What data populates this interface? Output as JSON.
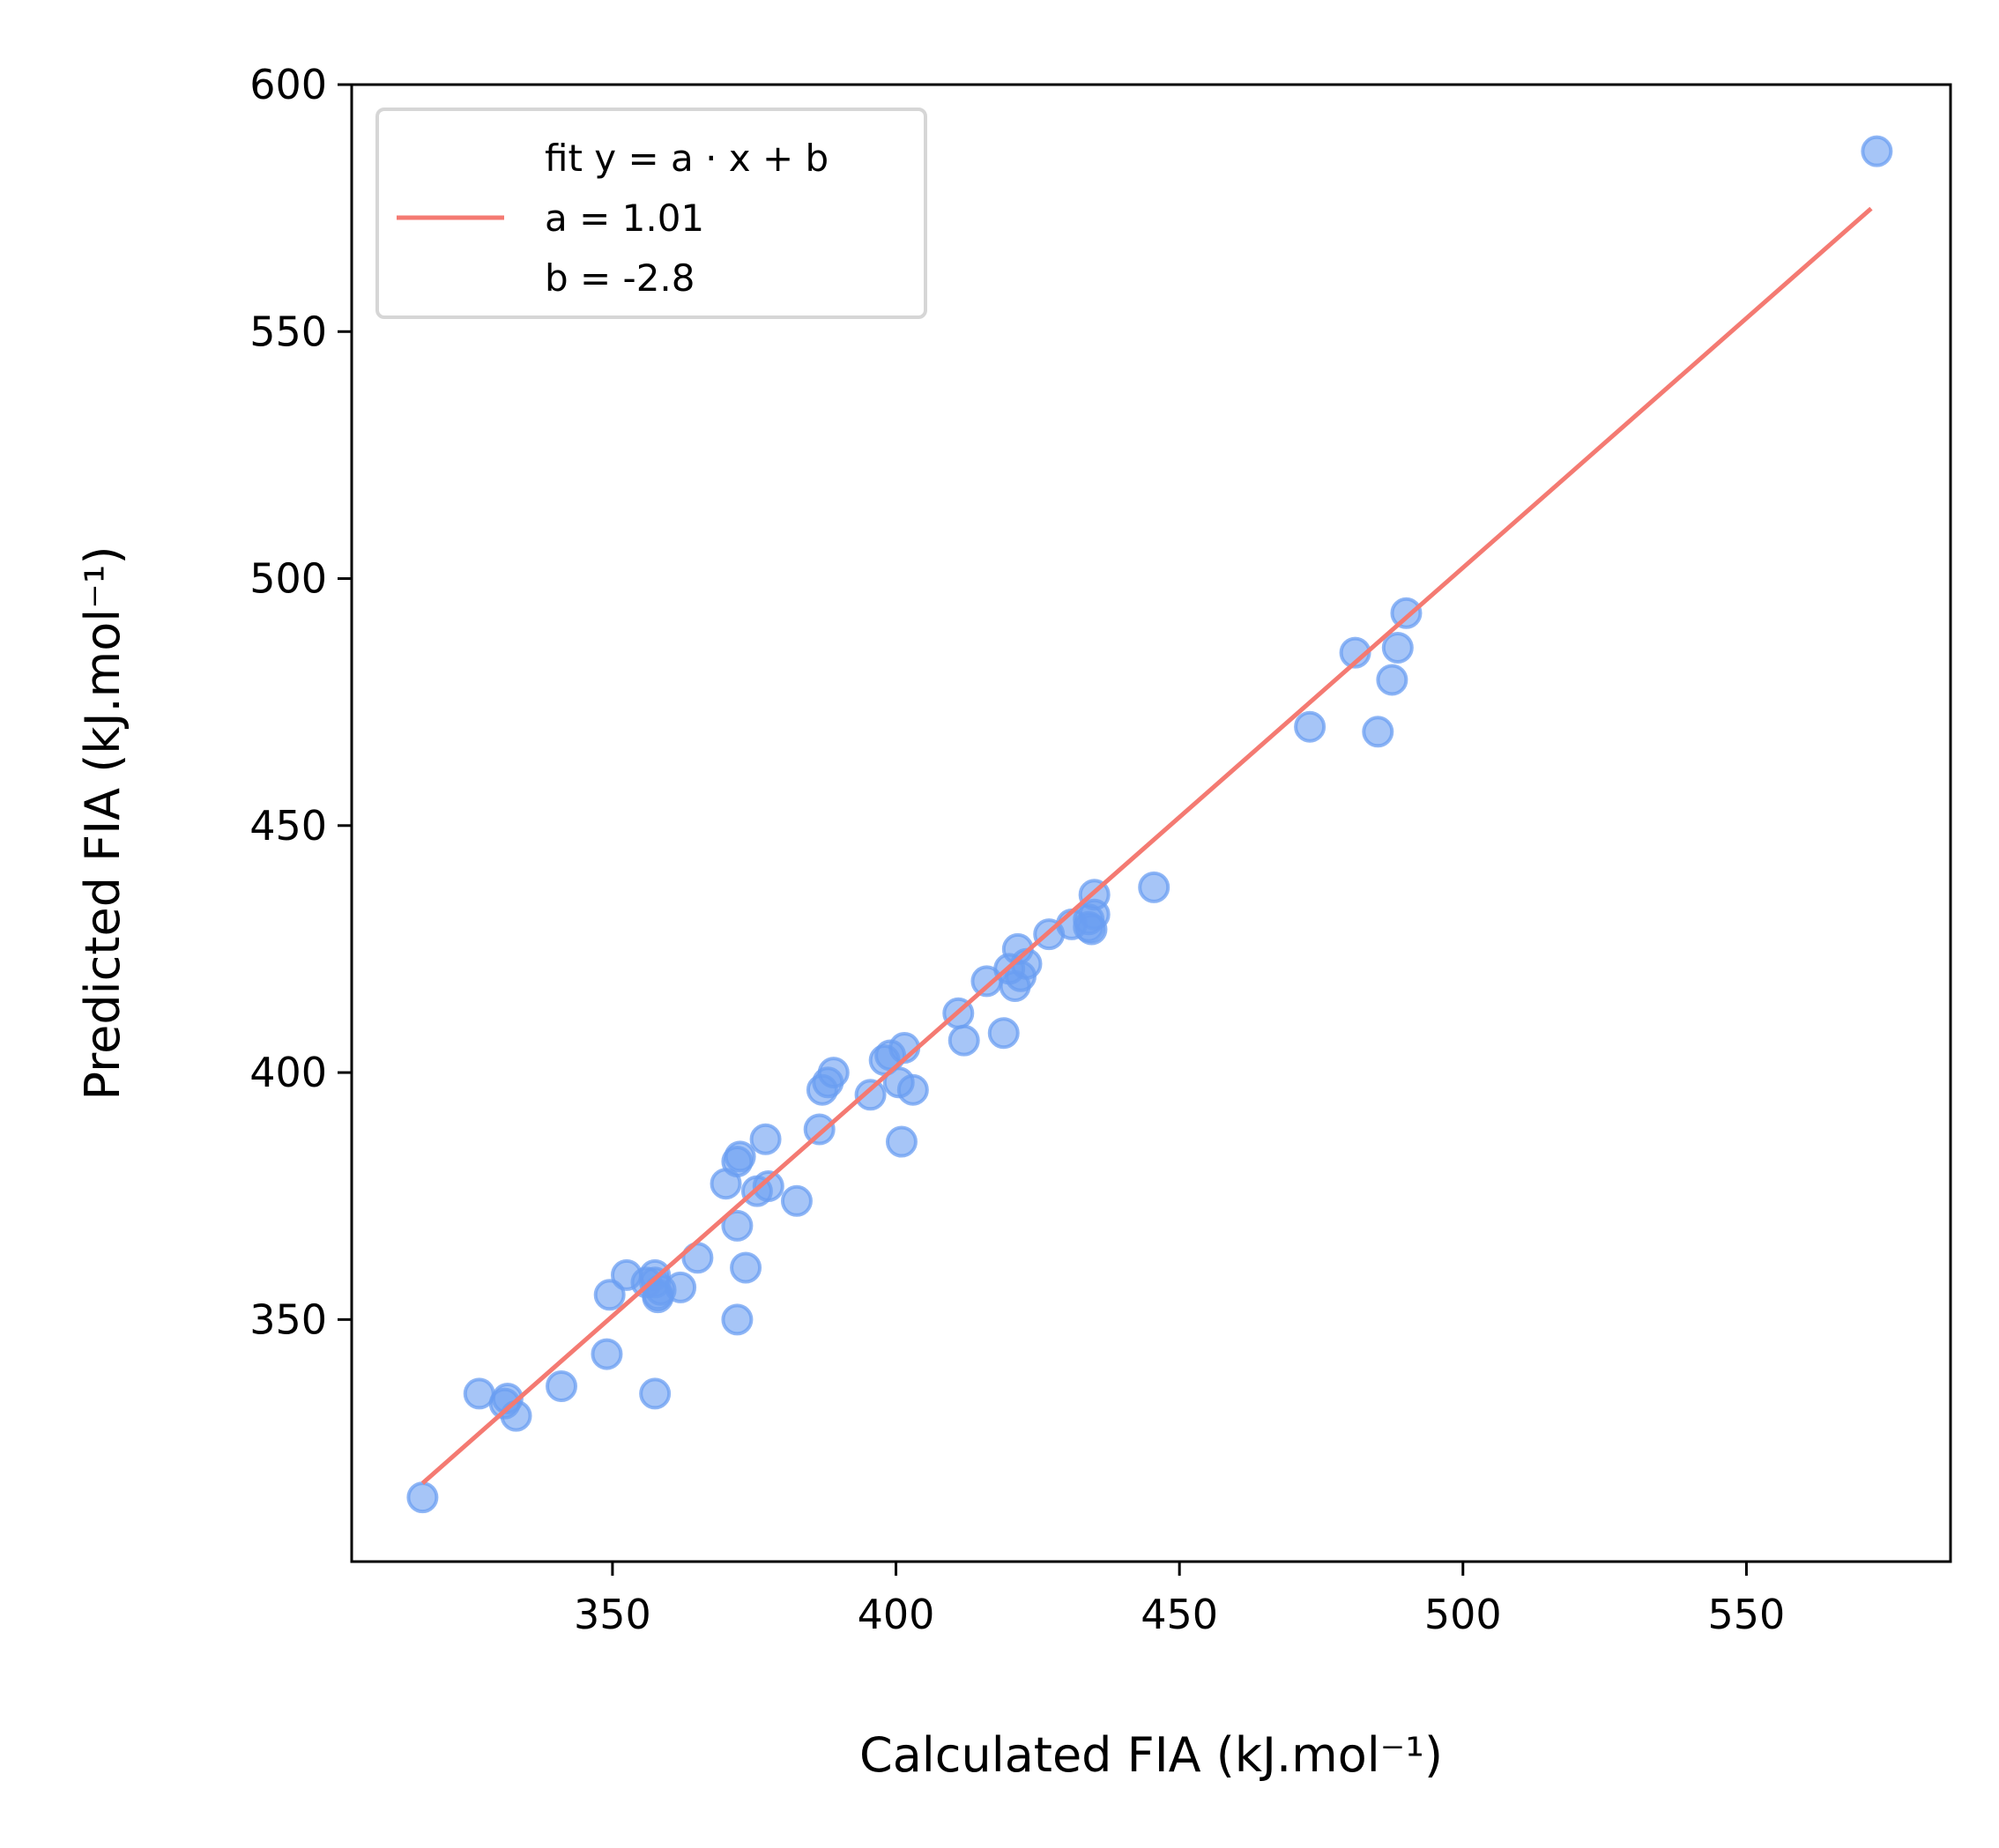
{
  "chart_data": {
    "type": "scatter",
    "title": "",
    "xlabel": "Calculated FIA (kJ.mol⁻¹)",
    "ylabel": "Predicted FIA (kJ.mol⁻¹)",
    "xlim": [
      304,
      586
    ],
    "ylim": [
      301,
      600
    ],
    "x_ticks": [
      350,
      400,
      450,
      500,
      550
    ],
    "y_ticks": [
      350,
      400,
      450,
      500,
      550,
      600
    ],
    "grid": false,
    "legend_position": "top-left",
    "legend": {
      "line1": "fit y = a · x + b",
      "line2": "a = 1.01",
      "line3": "b = -2.8"
    },
    "colors": {
      "points": "#6a9ef2",
      "fit": "#f47a72"
    },
    "fit": {
      "a": 1.01,
      "b": -2.8,
      "x_range": [
        316.5,
        572
      ]
    },
    "points": {
      "x": [
        316.5,
        326.5,
        331,
        331.5,
        333,
        341,
        349,
        349.5,
        352.5,
        356,
        357.5,
        357.5,
        357.5,
        358,
        358.5,
        358,
        362,
        365,
        370,
        372,
        372,
        372,
        372.5,
        373.5,
        375.5,
        377,
        377.5,
        382.5,
        386.5,
        387,
        388,
        389,
        395.5,
        398,
        399,
        400.5,
        401,
        401.5,
        403,
        411,
        412,
        416,
        419,
        420,
        421.5,
        422,
        421,
        423,
        427,
        431,
        434,
        435,
        435,
        434.5,
        434,
        445.5,
        473,
        481,
        485,
        487.5,
        488.5,
        490,
        573
      ],
      "y": [
        314,
        335,
        333,
        334,
        330.5,
        336.5,
        343,
        355,
        359,
        357.5,
        335,
        359,
        357.5,
        355,
        356,
        354.5,
        356.5,
        362.5,
        377.5,
        350,
        369,
        382,
        383,
        360.5,
        376,
        386.5,
        377,
        374,
        388.5,
        396.5,
        398,
        400,
        395.5,
        402.5,
        403.5,
        398,
        386,
        405,
        396.5,
        412,
        406.5,
        418.5,
        408,
        421,
        425,
        419.5,
        417.5,
        422,
        428,
        430,
        431,
        436,
        432,
        429,
        429.5,
        437.5,
        470,
        485,
        469,
        479.5,
        486,
        493,
        586.5
      ]
    }
  }
}
